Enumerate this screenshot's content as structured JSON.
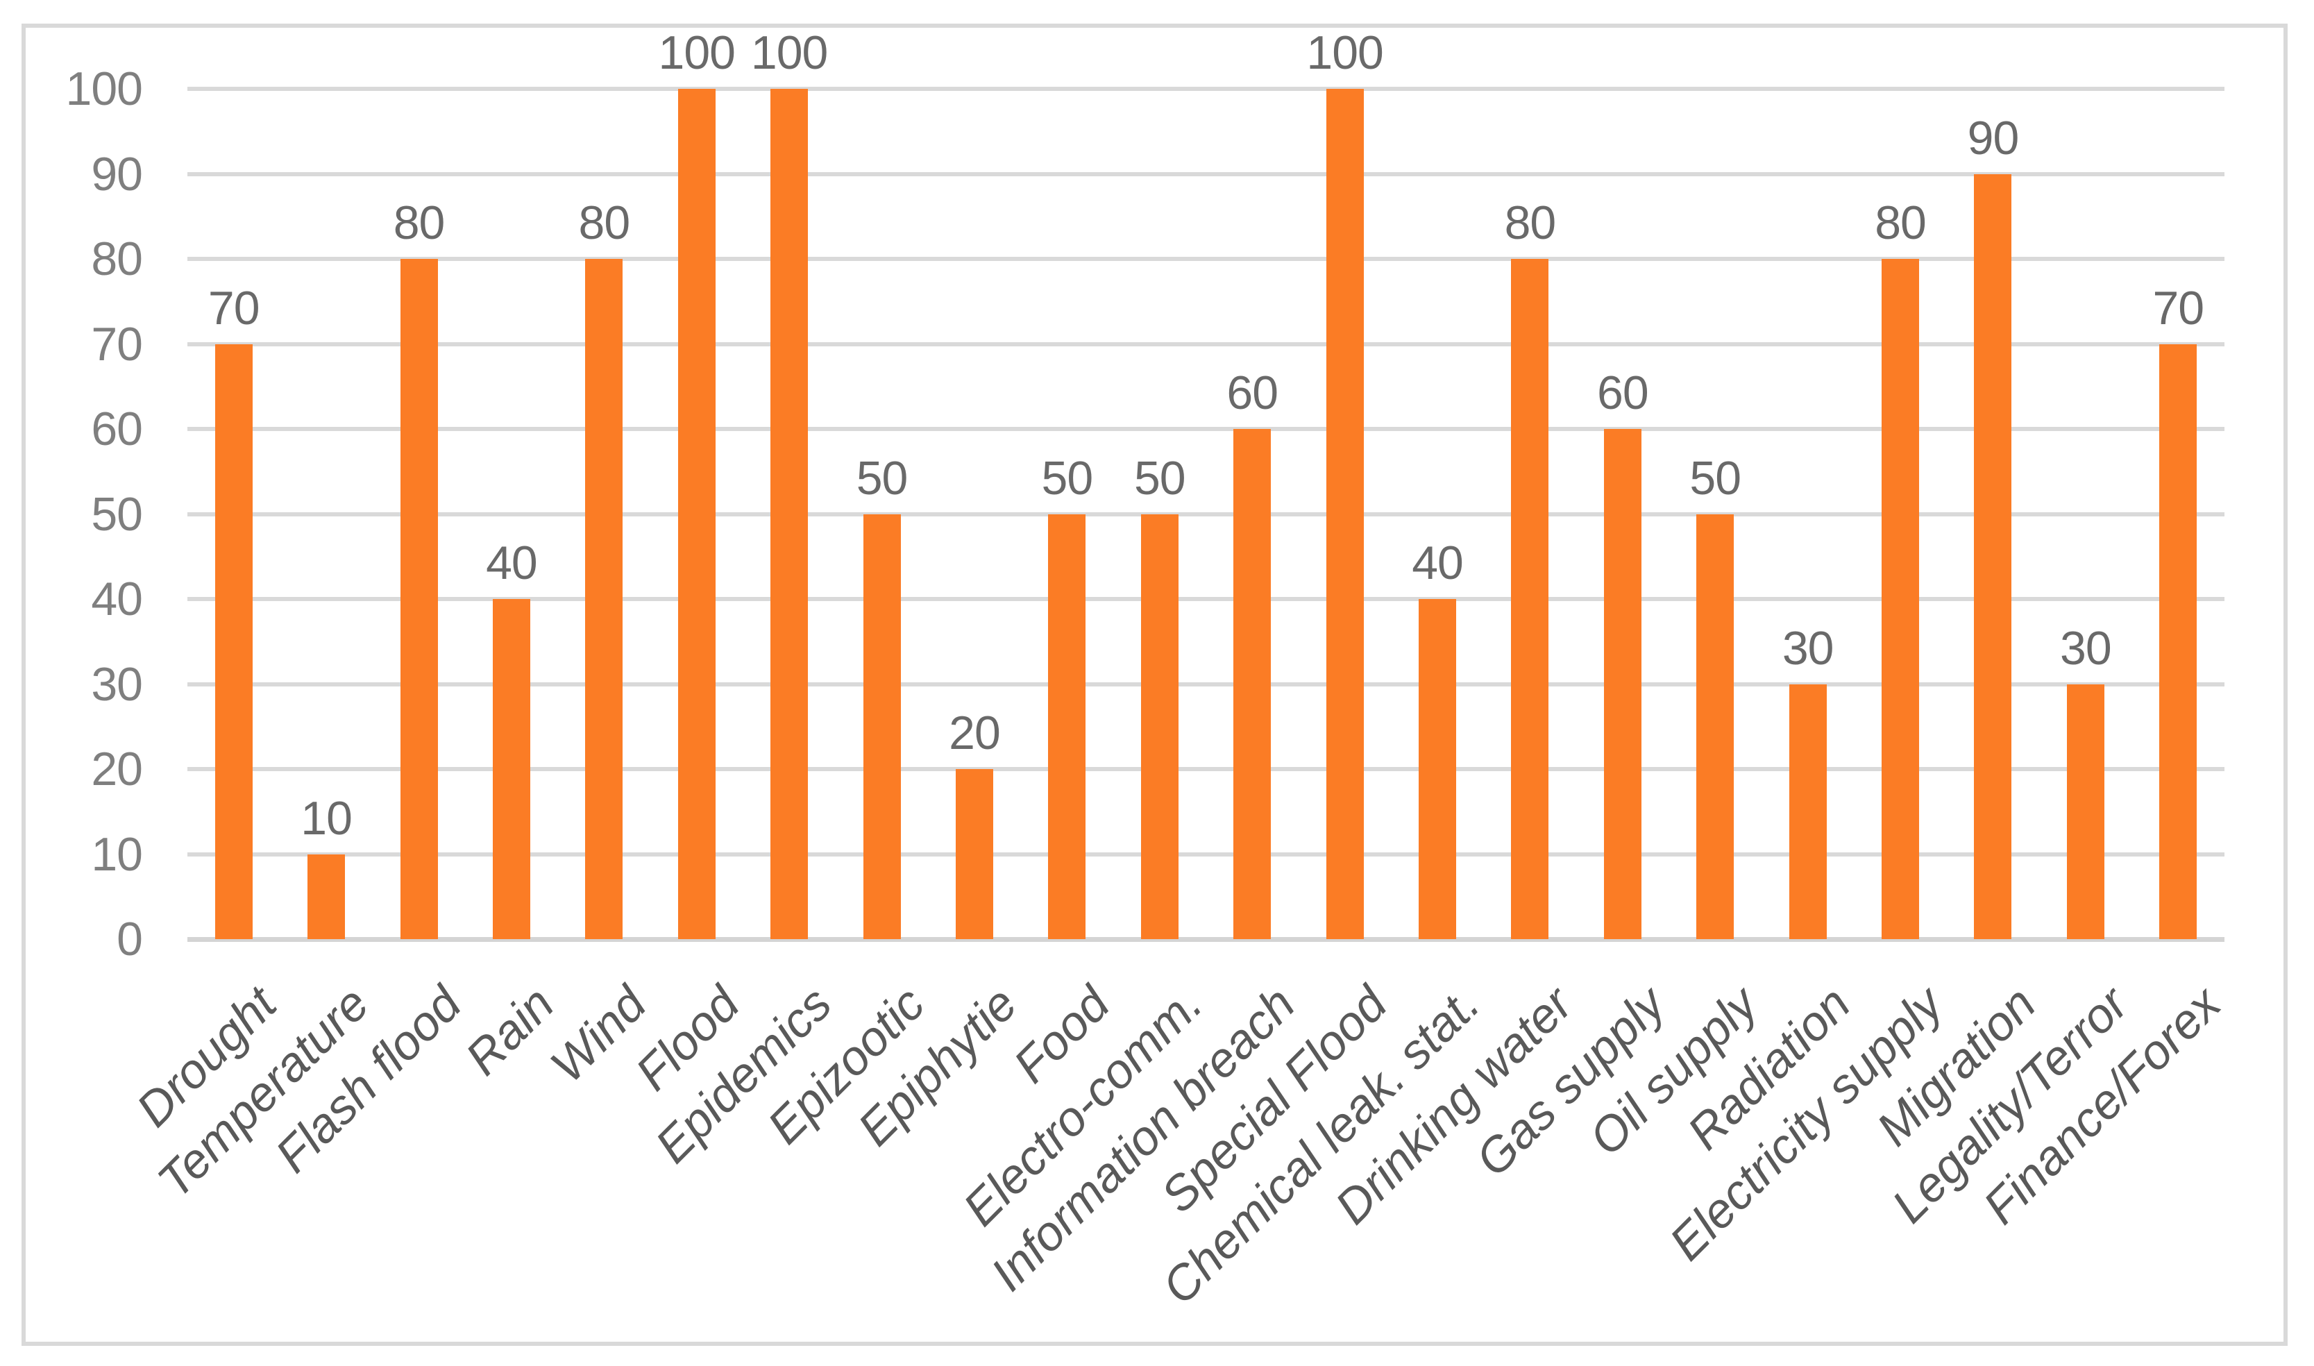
{
  "chart_data": {
    "type": "bar",
    "title": "",
    "xlabel": "",
    "ylabel": "",
    "categories": [
      "Drought",
      "Temperature",
      "Flash flood",
      "Rain",
      "Wind",
      "Flood",
      "Epidemics",
      "Epizootic",
      "Epiphytie",
      "Food",
      "Electro-comm.",
      "Information breach",
      "Special Flood",
      "Chemical leak. stat.",
      "Drinking water",
      "Gas supply",
      "Oil supply",
      "Radiation",
      "Electricity supply",
      "Migration",
      "Legality/Terror",
      "Finance/Forex"
    ],
    "values": [
      70,
      10,
      80,
      40,
      80,
      100,
      100,
      50,
      20,
      50,
      50,
      60,
      100,
      40,
      80,
      60,
      50,
      30,
      80,
      90,
      30,
      70
    ],
    "yticks": [
      0,
      10,
      20,
      30,
      40,
      50,
      60,
      70,
      80,
      90,
      100
    ],
    "ylim": [
      0,
      100
    ],
    "grid": true,
    "legend": false,
    "data_labels_position": "outside-end",
    "category_labels_rotation_deg": 45,
    "category_labels_style": "italic"
  },
  "colors": {
    "bar": "#FB7C25",
    "gridline": "#D9D9D9",
    "axis_line": "#D4D4D4",
    "frame_border": "#D9D9D9",
    "y_tick_label": "#7F7F7F",
    "data_label": "#696969",
    "category_label": "#595959",
    "background": "#FFFFFF"
  }
}
